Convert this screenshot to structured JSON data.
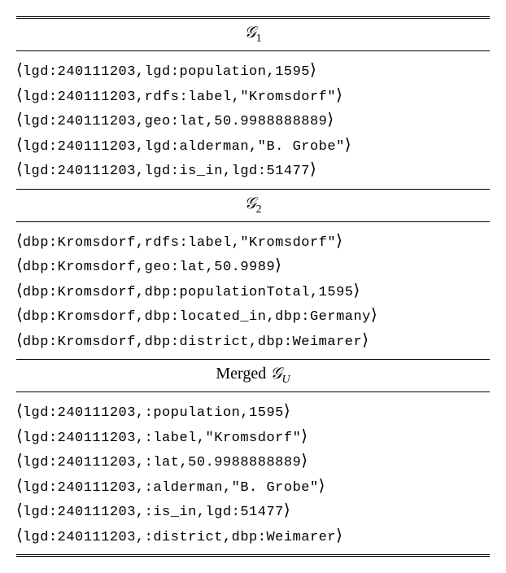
{
  "table": {
    "background_color": "#ffffff",
    "border_color": "#000000",
    "font_mono": "Courier New",
    "font_serif": "Times New Roman",
    "header_fontsize": 20,
    "triple_fontsize": 17,
    "sections": [
      {
        "header_script": "𝒢",
        "header_sub": "1",
        "header_prefix": "",
        "triples": [
          {
            "s": "lgd:240111203",
            "p": "lgd:population",
            "o": "1595"
          },
          {
            "s": "lgd:240111203",
            "p": "rdfs:label",
            "o": "\"Kromsdorf\""
          },
          {
            "s": "lgd:240111203",
            "p": "geo:lat",
            "o": "50.9988888889"
          },
          {
            "s": "lgd:240111203",
            "p": "lgd:alderman",
            "o": "\"B. Grobe\""
          },
          {
            "s": "lgd:240111203",
            "p": "lgd:is_in",
            "o": "lgd:51477"
          }
        ]
      },
      {
        "header_script": "𝒢",
        "header_sub": "2",
        "header_prefix": "",
        "triples": [
          {
            "s": "dbp:Kromsdorf",
            "p": "rdfs:label",
            "o": "\"Kromsdorf\""
          },
          {
            "s": "dbp:Kromsdorf",
            "p": "geo:lat",
            "o": "50.9989"
          },
          {
            "s": "dbp:Kromsdorf",
            "p": "dbp:populationTotal",
            "o": "1595"
          },
          {
            "s": "dbp:Kromsdorf",
            "p": "dbp:located_in",
            "o": "dbp:Germany"
          },
          {
            "s": "dbp:Kromsdorf",
            "p": "dbp:district",
            "o": "dbp:Weimarer"
          }
        ]
      },
      {
        "header_script": "𝒢",
        "header_sub": "U",
        "header_prefix": "Merged ",
        "triples": [
          {
            "s": "lgd:240111203",
            "p": ":population",
            "o": "1595"
          },
          {
            "s": "lgd:240111203",
            "p": ":label",
            "o": "\"Kromsdorf\""
          },
          {
            "s": "lgd:240111203",
            "p": ":lat",
            "o": "50.9988888889"
          },
          {
            "s": "lgd:240111203",
            "p": ":alderman",
            "o": "\"B. Grobe\""
          },
          {
            "s": "lgd:240111203",
            "p": ":is_in",
            "o": "lgd:51477"
          },
          {
            "s": "lgd:240111203",
            "p": ":district",
            "o": "dbp:Weimarer"
          }
        ]
      }
    ]
  }
}
